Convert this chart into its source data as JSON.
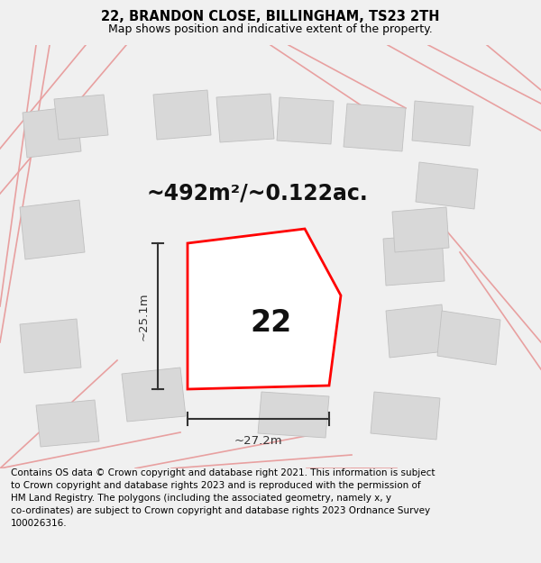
{
  "title": "22, BRANDON CLOSE, BILLINGHAM, TS23 2TH",
  "subtitle": "Map shows position and indicative extent of the property.",
  "footer": "Contains OS data © Crown copyright and database right 2021. This information is subject\nto Crown copyright and database rights 2023 and is reproduced with the permission of\nHM Land Registry. The polygons (including the associated geometry, namely x, y\nco-ordinates) are subject to Crown copyright and database rights 2023 Ordnance Survey\n100026316.",
  "area_label": "~492m²/~0.122ac.",
  "number_label": "22",
  "width_label": "~27.2m",
  "height_label": "~25.1m",
  "bg_color": "#f0f0f0",
  "map_bg": "#ffffff",
  "plot_color": "#ff0000",
  "plot_lw": 2.0,
  "dim_color": "#333333",
  "title_fontsize": 10.5,
  "subtitle_fontsize": 9,
  "footer_fontsize": 7.5,
  "area_fontsize": 17,
  "number_fontsize": 24,
  "figsize": [
    6.0,
    6.25
  ],
  "dpi": 100,
  "road_color": "#e8a0a0",
  "building_fill": "#d8d8d8",
  "building_edge": "#c0c0c0",
  "map_border_color": "#cccccc"
}
